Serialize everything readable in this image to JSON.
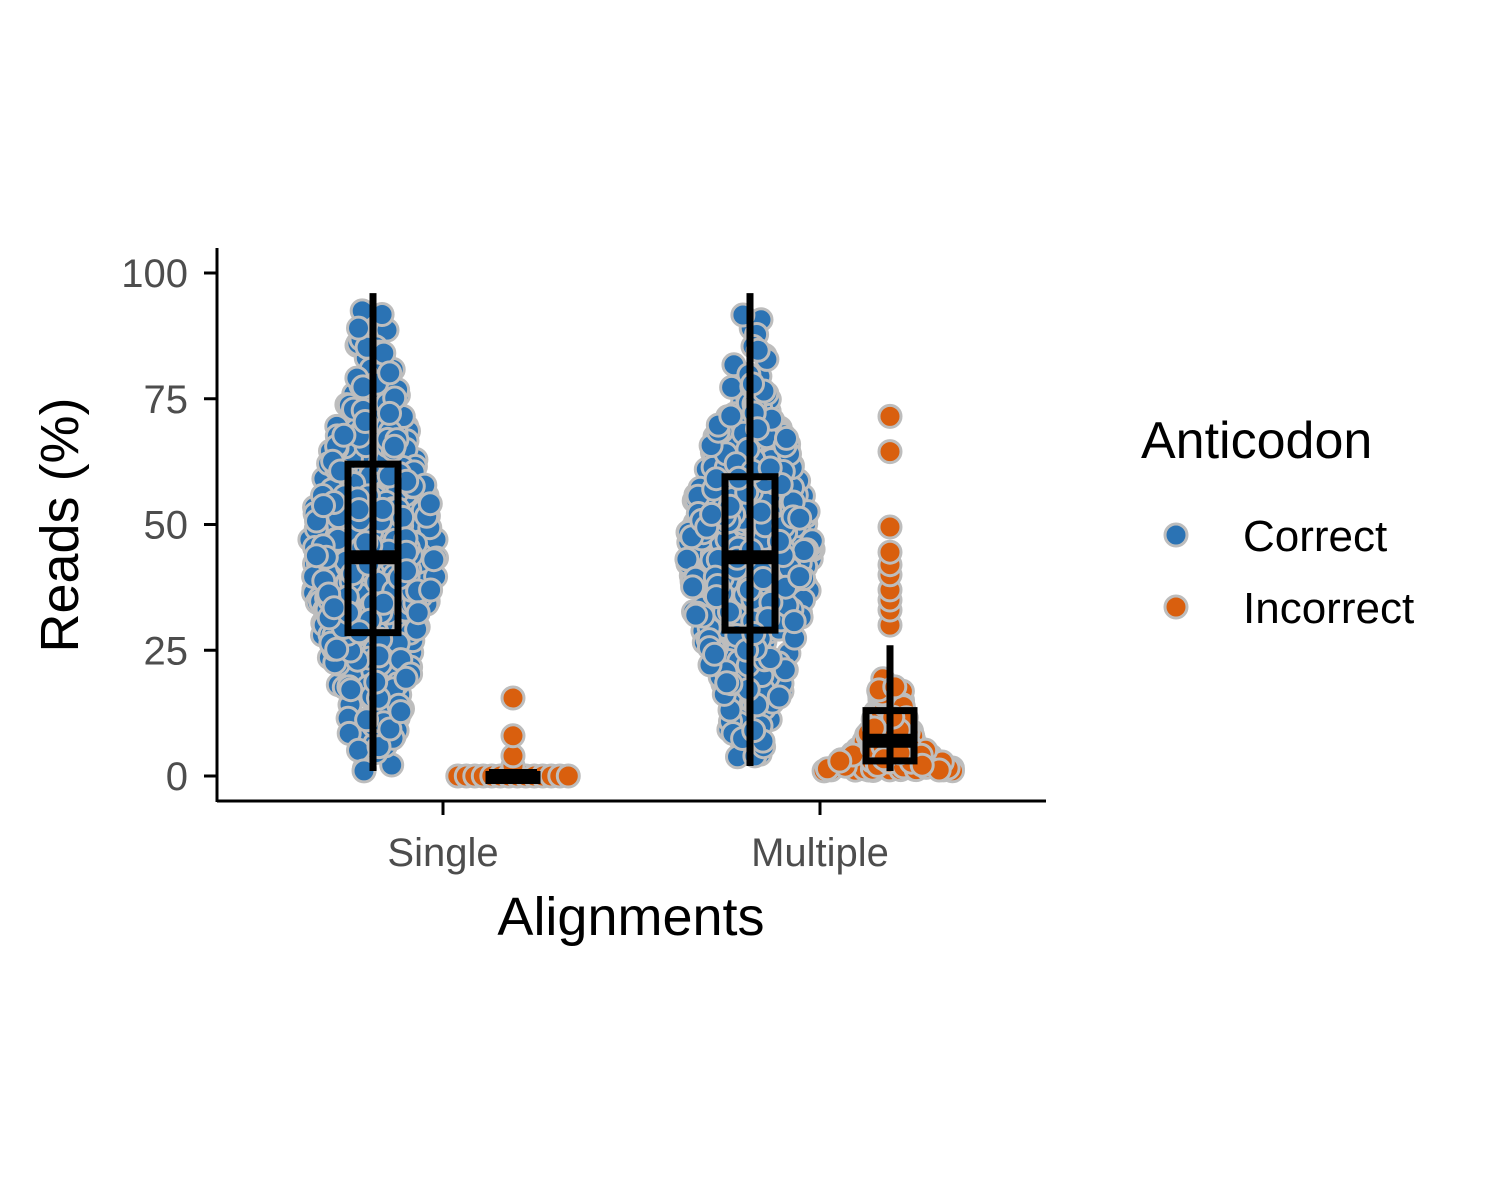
{
  "chart_data": {
    "type": "scatter",
    "subtype": "beeswarm with boxplot",
    "xlabel": "Alignments",
    "ylabel": "Reads (%)",
    "categories": [
      "Single",
      "Multiple"
    ],
    "ylim": [
      -4,
      105
    ],
    "yticks": [
      0,
      25,
      50,
      75,
      100
    ],
    "grid": false,
    "legend": {
      "title": "Anticodon",
      "position": "right",
      "entries": [
        {
          "label": "Correct",
          "color": "#2b73b4"
        },
        {
          "label": "Incorrect",
          "color": "#d95f0e"
        }
      ]
    },
    "point_outline": "#bdbdbd",
    "series": [
      {
        "name": "Correct",
        "color": "#2b73b4",
        "boxplots": [
          {
            "category": "Single",
            "min": 1,
            "q1": 28.5,
            "median": 43.5,
            "q3": 62,
            "max": 96
          },
          {
            "category": "Multiple",
            "min": 2,
            "q1": 29,
            "median": 43.5,
            "q3": 59.5,
            "max": 96
          }
        ]
      },
      {
        "name": "Incorrect",
        "color": "#d95f0e",
        "boxplots": [
          {
            "category": "Single",
            "min": 0,
            "q1": 0,
            "median": 0,
            "q3": 0.3,
            "max": 0.5
          },
          {
            "category": "Multiple",
            "min": 1,
            "q1": 3,
            "median": 7,
            "q3": 13,
            "max": 26
          },
          {
            "category": "Multiple",
            "outliers": [
              30,
              33,
              35,
              37,
              40,
              42,
              44.5,
              49.5,
              64.5,
              71.5
            ]
          },
          {
            "category": "Single",
            "outliers": [
              2,
              4,
              8,
              15.5
            ]
          }
        ]
      }
    ]
  }
}
